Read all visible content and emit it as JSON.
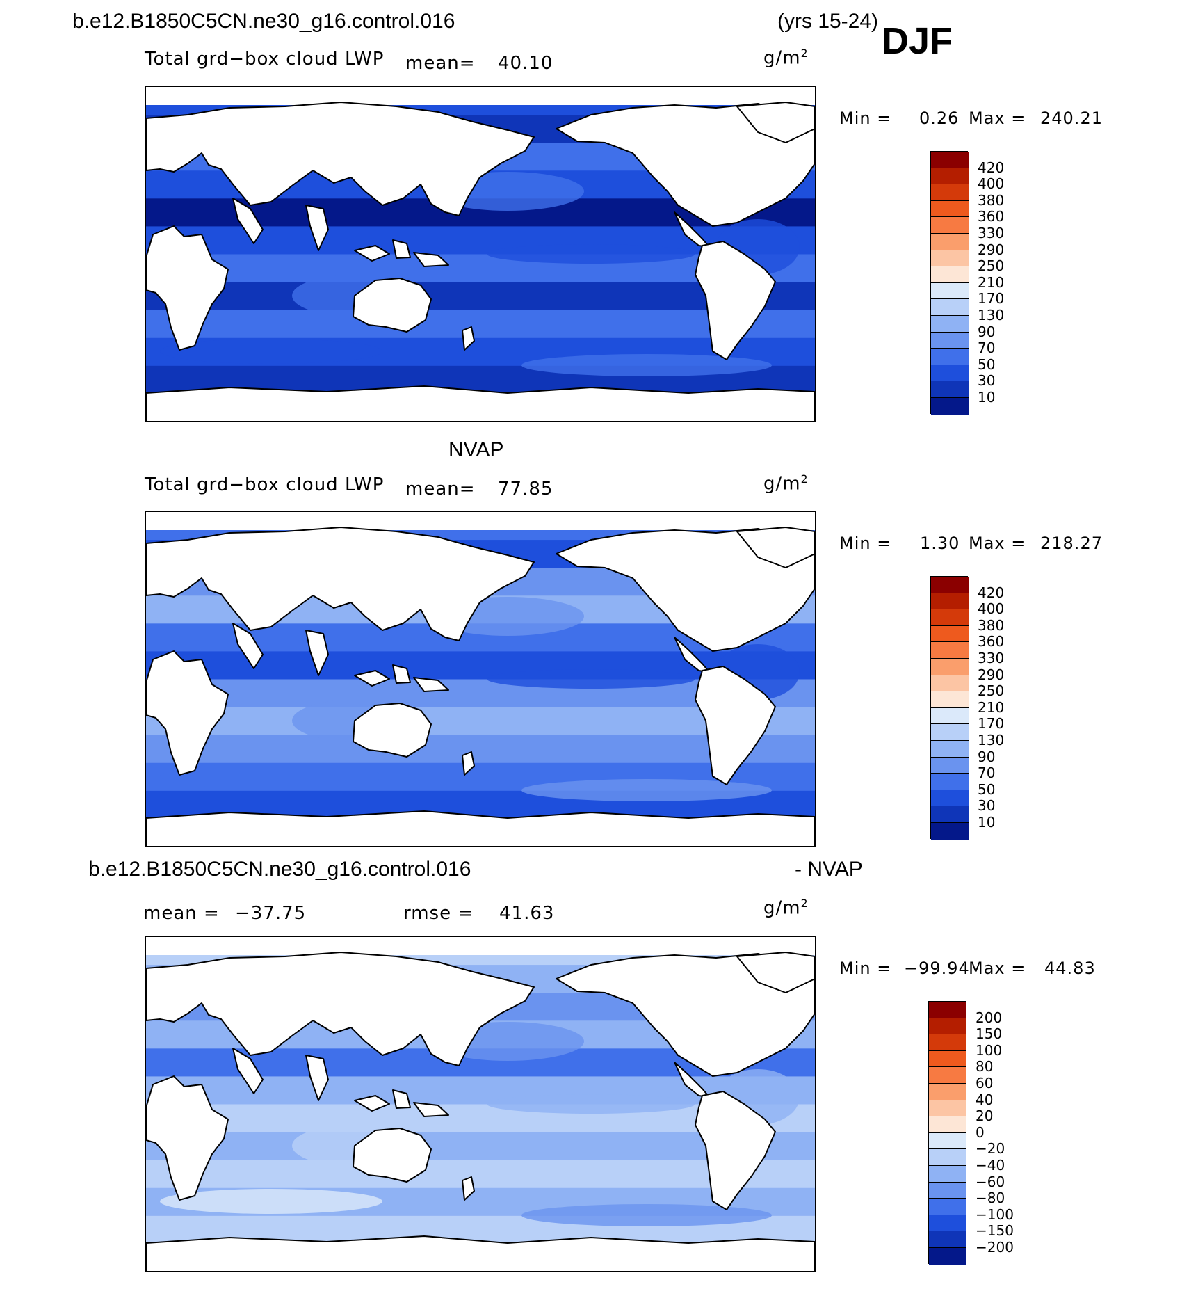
{
  "top_header": {
    "case_name": "b.e12.B1850C5CN.ne30_g16.control.016",
    "years": "(yrs 15-24)",
    "season": "DJF"
  },
  "panels": [
    {
      "id": "model",
      "left_label": "Total grd−box cloud LWP",
      "mean_label": "mean=",
      "mean_value": "40.10",
      "units_base": "g/m",
      "units_exp": "2",
      "min_label": "Min =",
      "min_value": "0.26",
      "max_label": "Max =",
      "max_value": "240.21"
    },
    {
      "id": "obs",
      "title": "NVAP",
      "left_label": "Total grd−box cloud LWP",
      "mean_label": "mean=",
      "mean_value": "77.85",
      "units_base": "g/m",
      "units_exp": "2",
      "min_label": "Min =",
      "min_value": "1.30",
      "max_label": "Max =",
      "max_value": "218.27"
    },
    {
      "id": "diff",
      "title_left": "b.e12.B1850C5CN.ne30_g16.control.016",
      "title_right": "- NVAP",
      "mean_label": "mean =",
      "mean_value": "−37.75",
      "rmse_label": "rmse =",
      "rmse_value": "41.63",
      "units_base": "g/m",
      "units_exp": "2",
      "min_label": "Min =",
      "min_value": "−99.94",
      "max_label": "Max =",
      "max_value": "44.83"
    }
  ],
  "chart_data": [
    {
      "type": "heatmap",
      "title": "Total grd-box cloud LWP",
      "subtitle": "b.e12.B1850C5CN.ne30_g16.control.016 (yrs 15-24) DJF",
      "units": "g/m2",
      "mean": 40.1,
      "min": 0.26,
      "max": 240.21,
      "colorbar_levels": [
        "420",
        "400",
        "380",
        "360",
        "330",
        "290",
        "250",
        "210",
        "170",
        "130",
        "90",
        "70",
        "50",
        "30",
        "10"
      ],
      "colorbar_colors": [
        "#8b0000",
        "#b41e00",
        "#d43a0a",
        "#ee5a1e",
        "#f77a42",
        "#fa9e6c",
        "#fcc5a4",
        "#fde6d6",
        "#dbe9fa",
        "#b8d0f8",
        "#8fb2f4",
        "#6a93ef",
        "#4070ea",
        "#1e4fdc",
        "#0f35b8",
        "#04188a"
      ]
    },
    {
      "type": "heatmap",
      "title": "NVAP Total grd-box cloud LWP",
      "units": "g/m2",
      "mean": 77.85,
      "min": 1.3,
      "max": 218.27,
      "colorbar_levels": [
        "420",
        "400",
        "380",
        "360",
        "330",
        "290",
        "250",
        "210",
        "170",
        "130",
        "90",
        "70",
        "50",
        "30",
        "10"
      ],
      "colorbar_colors": [
        "#8b0000",
        "#b41e00",
        "#d43a0a",
        "#ee5a1e",
        "#f77a42",
        "#fa9e6c",
        "#fcc5a4",
        "#fde6d6",
        "#dbe9fa",
        "#b8d0f8",
        "#8fb2f4",
        "#6a93ef",
        "#4070ea",
        "#1e4fdc",
        "#0f35b8",
        "#04188a"
      ]
    },
    {
      "type": "heatmap",
      "title": "b.e12.B1850C5CN.ne30_g16.control.016 - NVAP",
      "units": "g/m2",
      "mean": -37.75,
      "rmse": 41.63,
      "min": -99.94,
      "max": 44.83,
      "colorbar_levels": [
        "200",
        "150",
        "100",
        "80",
        "60",
        "40",
        "20",
        "0",
        "−20",
        "−40",
        "−60",
        "−80",
        "−100",
        "−150",
        "−200"
      ],
      "colorbar_colors": [
        "#8b0000",
        "#b41e00",
        "#d43a0a",
        "#ee5a1e",
        "#f77a42",
        "#fa9e6c",
        "#fcc5a4",
        "#fde6d6",
        "#dbe9fa",
        "#b8d0f8",
        "#8fb2f4",
        "#6a93ef",
        "#4070ea",
        "#1e4fdc",
        "#0f35b8",
        "#04188a"
      ]
    }
  ]
}
